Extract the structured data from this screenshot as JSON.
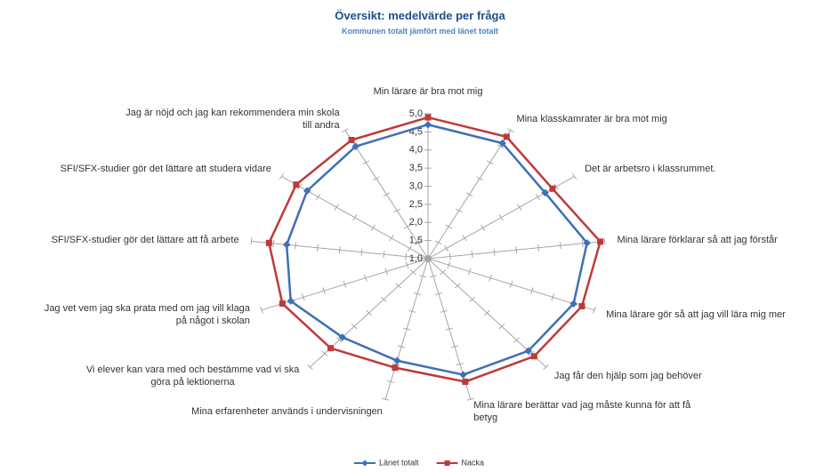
{
  "chart_data": {
    "type": "radar",
    "title": "Översikt: medelvärde per fråga",
    "subtitle": "Kommunen totalt jämfört med länet totalt",
    "categories": [
      "Min lärare är bra mot mig",
      "Mina klasskamrater är bra mot mig",
      "Det är arbetsro i klassrummet.",
      "Mina lärare förklarar så att jag förstår",
      "Mina lärare gör så att jag vill lära mig mer",
      "Jag får den hjälp som jag behöver",
      "Mina lärare berättar vad jag måste kunna för att få betyg",
      "Mina erfarenheter används i undervisningen",
      "Vi elever kan vara med och bestämme vad vi ska göra på lektionerna",
      "Jag vet vem jag ska prata med om jag vill klaga på något i skolan",
      "SFI/SFX-studier gör det lättare att få arbete",
      "SFI/SFX-studier gör det lättare att studera vidare",
      "Jag är nöjd och jag kan rekommendera min skola till andra"
    ],
    "series": [
      {
        "name": "Länet totalt",
        "color": "#3f6fb5",
        "values": [
          4.7,
          4.6,
          4.2,
          4.6,
          4.5,
          4.4,
          4.3,
          3.9,
          3.9,
          4.3,
          4.2,
          4.3,
          4.5
        ]
      },
      {
        "name": "Nacka",
        "color": "#be3a3a",
        "values": [
          4.9,
          4.8,
          4.4,
          4.9,
          4.7,
          4.6,
          4.5,
          4.1,
          4.3,
          4.5,
          4.6,
          4.6,
          4.7
        ]
      }
    ],
    "rlim": [
      1,
      5
    ],
    "rticks": [
      {
        "value": 1,
        "label": "1,0"
      },
      {
        "value": 1.5,
        "label": "1,5"
      },
      {
        "value": 2,
        "label": "2,0"
      },
      {
        "value": 2.5,
        "label": "2,5"
      },
      {
        "value": 3,
        "label": "3,0"
      },
      {
        "value": 3.5,
        "label": "3,5"
      },
      {
        "value": 4,
        "label": "4,0"
      },
      {
        "value": 4.5,
        "label": "4,5"
      },
      {
        "value": 5,
        "label": "5,0"
      }
    ],
    "legend": "bottom"
  }
}
